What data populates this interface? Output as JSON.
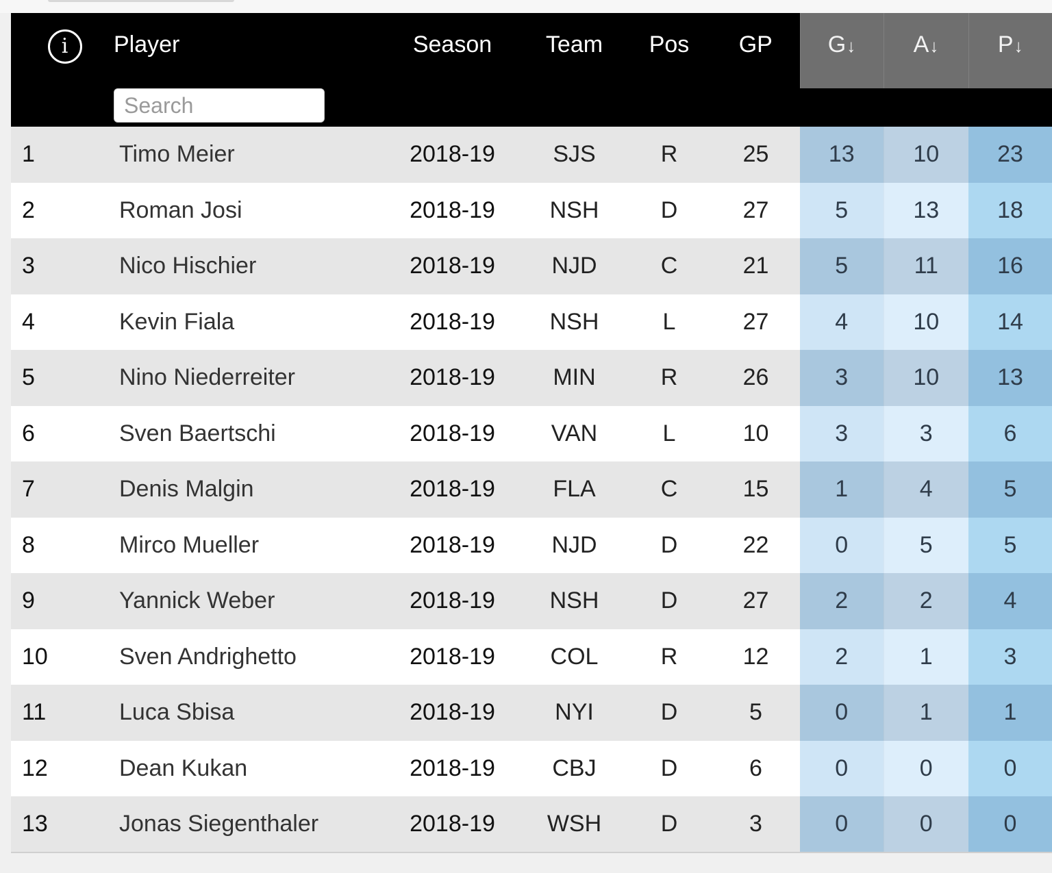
{
  "table": {
    "columns": {
      "player": "Player",
      "season": "Season",
      "team": "Team",
      "pos": "Pos",
      "gp": "GP",
      "g": "G",
      "a": "A",
      "p": "P"
    },
    "sort_indicator": "↓",
    "search": {
      "placeholder": "Search",
      "value": ""
    },
    "icons": {
      "info": "info-icon",
      "sort": "sort-down-arrow-icon"
    },
    "colors": {
      "header_bg": "#000000",
      "stat_header_bg": "#6f6f6f",
      "row_alt_bg": "#e6e6e6",
      "g_col_bg": "#a9c7de",
      "a_col_bg": "#bcd1e3",
      "p_col_bg": "#93c0df"
    },
    "rows": [
      {
        "rank": "1",
        "player": "Timo Meier",
        "season": "2018-19",
        "team": "SJS",
        "pos": "R",
        "gp": "25",
        "g": "13",
        "a": "10",
        "p": "23"
      },
      {
        "rank": "2",
        "player": "Roman Josi",
        "season": "2018-19",
        "team": "NSH",
        "pos": "D",
        "gp": "27",
        "g": "5",
        "a": "13",
        "p": "18"
      },
      {
        "rank": "3",
        "player": "Nico Hischier",
        "season": "2018-19",
        "team": "NJD",
        "pos": "C",
        "gp": "21",
        "g": "5",
        "a": "11",
        "p": "16"
      },
      {
        "rank": "4",
        "player": "Kevin Fiala",
        "season": "2018-19",
        "team": "NSH",
        "pos": "L",
        "gp": "27",
        "g": "4",
        "a": "10",
        "p": "14"
      },
      {
        "rank": "5",
        "player": "Nino Niederreiter",
        "season": "2018-19",
        "team": "MIN",
        "pos": "R",
        "gp": "26",
        "g": "3",
        "a": "10",
        "p": "13"
      },
      {
        "rank": "6",
        "player": "Sven Baertschi",
        "season": "2018-19",
        "team": "VAN",
        "pos": "L",
        "gp": "10",
        "g": "3",
        "a": "3",
        "p": "6"
      },
      {
        "rank": "7",
        "player": "Denis Malgin",
        "season": "2018-19",
        "team": "FLA",
        "pos": "C",
        "gp": "15",
        "g": "1",
        "a": "4",
        "p": "5"
      },
      {
        "rank": "8",
        "player": "Mirco Mueller",
        "season": "2018-19",
        "team": "NJD",
        "pos": "D",
        "gp": "22",
        "g": "0",
        "a": "5",
        "p": "5"
      },
      {
        "rank": "9",
        "player": "Yannick Weber",
        "season": "2018-19",
        "team": "NSH",
        "pos": "D",
        "gp": "27",
        "g": "2",
        "a": "2",
        "p": "4"
      },
      {
        "rank": "10",
        "player": "Sven Andrighetto",
        "season": "2018-19",
        "team": "COL",
        "pos": "R",
        "gp": "12",
        "g": "2",
        "a": "1",
        "p": "3"
      },
      {
        "rank": "11",
        "player": "Luca Sbisa",
        "season": "2018-19",
        "team": "NYI",
        "pos": "D",
        "gp": "5",
        "g": "0",
        "a": "1",
        "p": "1"
      },
      {
        "rank": "12",
        "player": "Dean Kukan",
        "season": "2018-19",
        "team": "CBJ",
        "pos": "D",
        "gp": "6",
        "g": "0",
        "a": "0",
        "p": "0"
      },
      {
        "rank": "13",
        "player": "Jonas Siegenthaler",
        "season": "2018-19",
        "team": "WSH",
        "pos": "D",
        "gp": "3",
        "g": "0",
        "a": "0",
        "p": "0"
      }
    ]
  }
}
